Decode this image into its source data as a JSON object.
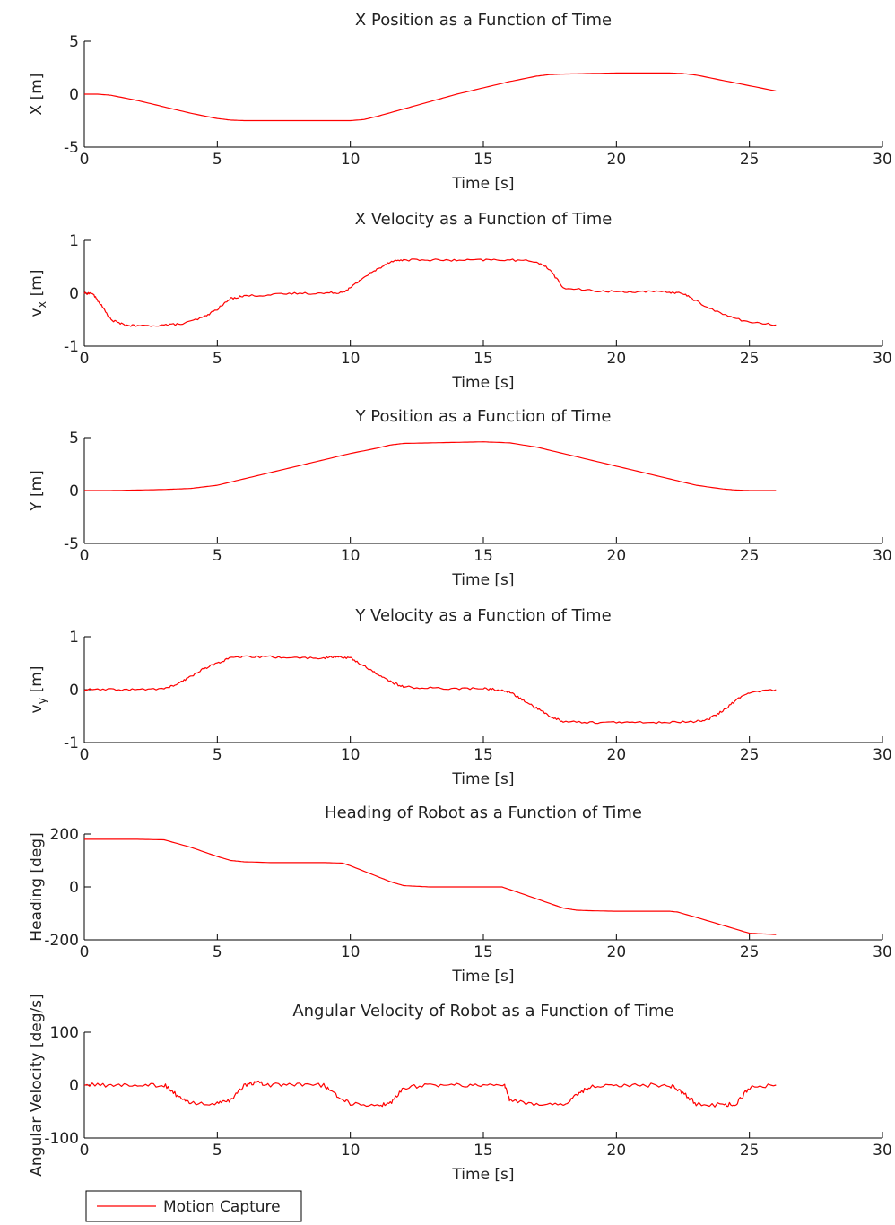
{
  "figure": {
    "background": "#ffffff",
    "axis_color": "#000000"
  },
  "legend": {
    "label": "Motion Capture",
    "color": "#ff0000",
    "placement": "bottom-left"
  },
  "chart_data": [
    {
      "type": "line",
      "title": "X Position as a Function of Time",
      "xlabel": "Time [s]",
      "ylabel": "X [m]",
      "xlim": [
        0,
        30
      ],
      "ylim": [
        -5,
        5
      ],
      "xticks": [
        0,
        5,
        10,
        15,
        20,
        25,
        30
      ],
      "yticks": [
        -5,
        0,
        5
      ],
      "noise": 0,
      "series": [
        {
          "color": "#ff0000",
          "x": [
            0,
            0.5,
            1,
            2,
            3,
            4,
            5,
            5.5,
            6,
            8,
            10,
            10.5,
            11,
            12,
            13,
            14,
            15,
            16,
            17,
            17.5,
            18,
            19,
            20,
            21,
            22,
            22.5,
            23,
            24,
            25,
            26
          ],
          "y": [
            0,
            0,
            -0.1,
            -0.6,
            -1.2,
            -1.8,
            -2.3,
            -2.45,
            -2.5,
            -2.5,
            -2.5,
            -2.4,
            -2.1,
            -1.4,
            -0.7,
            0,
            0.6,
            1.2,
            1.7,
            1.85,
            1.9,
            1.95,
            2,
            2,
            2,
            1.95,
            1.8,
            1.3,
            0.8,
            0.3
          ]
        }
      ]
    },
    {
      "type": "line",
      "title": "X Velocity as a Function of Time",
      "xlabel": "Time [s]",
      "ylabel": "v_x [m]",
      "xlim": [
        0,
        30
      ],
      "ylim": [
        -1,
        1
      ],
      "xticks": [
        0,
        5,
        10,
        15,
        20,
        25,
        30
      ],
      "yticks": [
        -1,
        0,
        1
      ],
      "noise": 0.02,
      "series": [
        {
          "color": "#ff0000",
          "x": [
            0,
            0.3,
            0.6,
            1,
            1.5,
            2,
            3,
            3.7,
            4.5,
            5,
            5.5,
            6,
            7,
            8,
            9,
            9.7,
            10,
            10.5,
            11,
            11.5,
            12,
            13,
            14,
            15,
            16,
            17,
            17.5,
            18,
            19,
            20,
            21,
            22,
            22.5,
            23,
            24,
            25,
            26
          ],
          "y": [
            0,
            0,
            -0.2,
            -0.5,
            -0.6,
            -0.62,
            -0.6,
            -0.58,
            -0.45,
            -0.3,
            -0.1,
            -0.05,
            -0.03,
            0,
            0,
            0.02,
            0.1,
            0.3,
            0.45,
            0.6,
            0.63,
            0.63,
            0.62,
            0.63,
            0.63,
            0.6,
            0.45,
            0.1,
            0.05,
            0.03,
            0.03,
            0.02,
            0,
            -0.15,
            -0.4,
            -0.55,
            -0.6
          ]
        }
      ]
    },
    {
      "type": "line",
      "title": "Y Position as a Function of Time",
      "xlabel": "Time [s]",
      "ylabel": "Y [m]",
      "xlim": [
        0,
        30
      ],
      "ylim": [
        -5,
        5
      ],
      "xticks": [
        0,
        5,
        10,
        15,
        20,
        25,
        30
      ],
      "yticks": [
        -5,
        0,
        5
      ],
      "noise": 0,
      "series": [
        {
          "color": "#ff0000",
          "x": [
            0,
            1,
            2,
            3,
            3.5,
            4,
            5,
            6,
            7,
            8,
            9,
            10,
            11,
            11.5,
            12,
            13,
            14,
            15,
            16,
            17,
            18,
            19,
            20,
            21,
            22,
            23,
            24,
            24.5,
            25,
            26
          ],
          "y": [
            0,
            0,
            0.05,
            0.1,
            0.15,
            0.2,
            0.5,
            1.1,
            1.7,
            2.3,
            2.9,
            3.5,
            4.0,
            4.3,
            4.45,
            4.5,
            4.55,
            4.6,
            4.5,
            4.1,
            3.5,
            2.9,
            2.3,
            1.7,
            1.1,
            0.5,
            0.15,
            0.05,
            0,
            0
          ]
        }
      ]
    },
    {
      "type": "line",
      "title": "Y Velocity as a Function of Time",
      "xlabel": "Time [s]",
      "ylabel": "v_y [m]",
      "xlim": [
        0,
        30
      ],
      "ylim": [
        -1,
        1
      ],
      "xticks": [
        0,
        5,
        10,
        15,
        20,
        25,
        30
      ],
      "yticks": [
        -1,
        0,
        1
      ],
      "noise": 0.02,
      "series": [
        {
          "color": "#ff0000",
          "x": [
            0,
            1,
            2,
            3,
            3.5,
            4,
            4.5,
            5,
            5.5,
            6,
            7,
            8,
            9,
            9.5,
            10,
            10.5,
            11,
            11.5,
            12,
            13,
            14,
            15,
            15.5,
            16,
            16.5,
            17,
            17.5,
            18,
            19,
            20,
            21,
            22,
            23,
            23.5,
            24,
            24.5,
            25,
            26
          ],
          "y": [
            0,
            0,
            0,
            0.02,
            0.1,
            0.25,
            0.4,
            0.5,
            0.6,
            0.62,
            0.62,
            0.6,
            0.6,
            0.62,
            0.6,
            0.45,
            0.3,
            0.15,
            0.05,
            0.03,
            0.02,
            0.02,
            0,
            -0.05,
            -0.2,
            -0.35,
            -0.5,
            -0.6,
            -0.62,
            -0.62,
            -0.62,
            -0.62,
            -0.6,
            -0.55,
            -0.4,
            -0.2,
            -0.05,
            0
          ]
        }
      ]
    },
    {
      "type": "line",
      "title": "Heading of Robot as a Function of Time",
      "xlabel": "Time [s]",
      "ylabel": "Heading [deg]",
      "xlim": [
        0,
        30
      ],
      "ylim": [
        -200,
        200
      ],
      "xticks": [
        0,
        5,
        10,
        15,
        20,
        25,
        30
      ],
      "yticks": [
        -200,
        0,
        200
      ],
      "noise": 0,
      "series": [
        {
          "color": "#ff0000",
          "x": [
            0,
            1,
            2,
            3,
            4,
            5,
            5.5,
            6,
            7,
            8,
            9,
            9.7,
            10,
            11,
            11.5,
            12,
            13,
            14,
            15,
            15.7,
            16,
            17,
            18,
            18.5,
            19,
            20,
            21,
            22,
            22.3,
            23,
            24,
            25,
            26
          ],
          "y": [
            180,
            180,
            180,
            178,
            150,
            115,
            100,
            95,
            92,
            92,
            92,
            90,
            80,
            40,
            20,
            5,
            0,
            0,
            0,
            0,
            -10,
            -45,
            -80,
            -88,
            -90,
            -92,
            -92,
            -92,
            -95,
            -115,
            -145,
            -175,
            -180
          ]
        }
      ]
    },
    {
      "type": "line",
      "title": "Angular Velocity of Robot as a Function of Time",
      "xlabel": "Time [s]",
      "ylabel": "Angular Velocity [deg/s]",
      "xlim": [
        0,
        30
      ],
      "ylim": [
        -100,
        100
      ],
      "xticks": [
        0,
        5,
        10,
        15,
        20,
        25,
        30
      ],
      "yticks": [
        -100,
        0,
        100
      ],
      "noise": 4,
      "series": [
        {
          "color": "#ff0000",
          "x": [
            0,
            1,
            2,
            3,
            3.5,
            4,
            5,
            5.5,
            6,
            6.5,
            7,
            8,
            9,
            9.5,
            10,
            11,
            11.5,
            12,
            13,
            14,
            15,
            15.8,
            16,
            17,
            18,
            18.5,
            19,
            20,
            21,
            22,
            22.5,
            23,
            24,
            24.5,
            25,
            26
          ],
          "y": [
            0,
            0,
            0,
            0,
            -20,
            -35,
            -35,
            -30,
            0,
            5,
            0,
            0,
            0,
            -20,
            -35,
            -38,
            -35,
            -5,
            0,
            0,
            0,
            0,
            -30,
            -35,
            -38,
            -20,
            -3,
            0,
            0,
            0,
            -15,
            -35,
            -38,
            -35,
            -5,
            0
          ]
        }
      ]
    }
  ]
}
